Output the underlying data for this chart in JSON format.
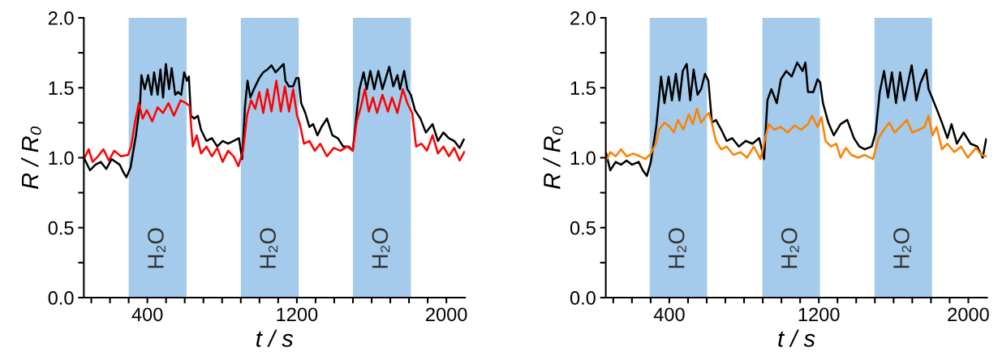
{
  "chart_data": [
    {
      "type": "line",
      "xlabel": "t / s",
      "ylabel": "R / R₀",
      "xlim": [
        60,
        2100
      ],
      "ylim": [
        0,
        2.0
      ],
      "xticks": [
        {
          "value": 100,
          "label": null
        },
        {
          "value": 200,
          "label": null
        },
        {
          "value": 300,
          "label": null
        },
        400,
        {
          "value": 500,
          "label": null
        },
        {
          "value": 600,
          "label": null
        },
        {
          "value": 700,
          "label": null
        },
        {
          "value": 800,
          "label": null
        },
        {
          "value": 900,
          "label": null
        },
        {
          "value": 1000,
          "label": null
        },
        {
          "value": 1100,
          "label": null
        },
        1200,
        {
          "value": 1300,
          "label": null
        },
        {
          "value": 1400,
          "label": null
        },
        {
          "value": 1500,
          "label": null
        },
        {
          "value": 1600,
          "label": null
        },
        {
          "value": 1700,
          "label": null
        },
        {
          "value": 1800,
          "label": null
        },
        {
          "value": 1900,
          "label": null
        },
        2000
      ],
      "yticks": [
        {
          "value": 0,
          "label": "0.0"
        },
        {
          "value": 0.25,
          "label": null
        },
        {
          "value": 0.5,
          "label": "0.5"
        },
        {
          "value": 0.75,
          "label": null
        },
        {
          "value": 1,
          "label": "1.0"
        },
        {
          "value": 1.25,
          "label": null
        },
        {
          "value": 1.5,
          "label": "1.5"
        },
        {
          "value": 1.75,
          "label": null
        },
        {
          "value": 2,
          "label": "2.0"
        }
      ],
      "grid": false,
      "legend": false,
      "bands": [
        {
          "axis": "x",
          "from": 300,
          "to": 610,
          "label": "H₂O",
          "color": "#a4cbeb"
        },
        {
          "axis": "x",
          "from": 900,
          "to": 1210,
          "label": "H₂O",
          "color": "#a4cbeb"
        },
        {
          "axis": "x",
          "from": 1500,
          "to": 1810,
          "label": "H₂O",
          "color": "#a4cbeb"
        }
      ],
      "series": [
        {
          "color": "#000000",
          "x": [
            64,
            93,
            122,
            151,
            180,
            209,
            252,
            274,
            288,
            310,
            339,
            361,
            368,
            386,
            404,
            422,
            436,
            455,
            470,
            484,
            499,
            516,
            530,
            549,
            564,
            581,
            597,
            612,
            622,
            633,
            651,
            670,
            687,
            716,
            745,
            774,
            803,
            832,
            861,
            890,
            907,
            922,
            936,
            951,
            970,
            999,
            1020,
            1042,
            1064,
            1086,
            1107,
            1129,
            1139,
            1158,
            1180,
            1197,
            1209,
            1223,
            1245,
            1267,
            1287,
            1310,
            1332,
            1361,
            1390,
            1419,
            1448,
            1477,
            1499,
            1520,
            1535,
            1557,
            1574,
            1593,
            1614,
            1636,
            1658,
            1694,
            1716,
            1738,
            1752,
            1774,
            1791,
            1810,
            1832,
            1861,
            1890,
            1926,
            1955,
            1984,
            2013,
            2042,
            2071,
            2093
          ],
          "values": [
            0.99,
            0.91,
            0.95,
            0.97,
            0.92,
            0.99,
            0.95,
            0.89,
            0.86,
            0.93,
            1.16,
            1.39,
            1.59,
            1.49,
            1.59,
            1.45,
            1.61,
            1.45,
            1.63,
            1.43,
            1.67,
            1.49,
            1.64,
            1.45,
            1.47,
            1.45,
            1.61,
            1.55,
            1.58,
            1.3,
            1.28,
            1.3,
            1.2,
            1.12,
            1.14,
            1.08,
            1.12,
            1.1,
            1.12,
            1.14,
            0.99,
            1.36,
            1.55,
            1.43,
            1.49,
            1.57,
            1.61,
            1.63,
            1.66,
            1.61,
            1.64,
            1.67,
            1.55,
            1.51,
            1.51,
            1.57,
            1.57,
            1.39,
            1.32,
            1.22,
            1.24,
            1.16,
            1.22,
            1.28,
            1.16,
            1.14,
            1.08,
            1.08,
            1.05,
            1.32,
            1.49,
            1.61,
            1.49,
            1.62,
            1.49,
            1.62,
            1.49,
            1.65,
            1.51,
            1.59,
            1.49,
            1.62,
            1.49,
            1.45,
            1.34,
            1.28,
            1.18,
            1.24,
            1.12,
            1.18,
            1.14,
            1.12,
            1.07,
            1.13
          ]
        },
        {
          "color": "#ff0000",
          "x": [
            64,
            86,
            107,
            136,
            165,
            194,
            223,
            259,
            296,
            313,
            332,
            354,
            375,
            397,
            426,
            455,
            484,
            513,
            542,
            578,
            607,
            626,
            643,
            664,
            687,
            716,
            745,
            774,
            803,
            832,
            861,
            887,
            912,
            933,
            955,
            977,
            999,
            1020,
            1042,
            1064,
            1090,
            1114,
            1136,
            1158,
            1180,
            1201,
            1216,
            1238,
            1267,
            1296,
            1325,
            1361,
            1397,
            1433,
            1470,
            1499,
            1520,
            1542,
            1564,
            1585,
            1607,
            1629,
            1658,
            1687,
            1709,
            1738,
            1767,
            1791,
            1817,
            1838,
            1867,
            1896,
            1926,
            1955,
            1984,
            2013,
            2042,
            2071,
            2095
          ],
          "values": [
            1.0,
            1.06,
            0.97,
            1.01,
            1.06,
            0.98,
            1.05,
            1.01,
            1.02,
            1.08,
            1.24,
            1.39,
            1.28,
            1.34,
            1.26,
            1.36,
            1.32,
            1.39,
            1.3,
            1.41,
            1.39,
            1.37,
            1.08,
            1.16,
            1.03,
            1.08,
            1.01,
            1.07,
            0.97,
            1.05,
            1.01,
            0.94,
            1.05,
            1.3,
            1.41,
            1.35,
            1.47,
            1.32,
            1.49,
            1.33,
            1.55,
            1.33,
            1.51,
            1.33,
            1.49,
            1.3,
            1.24,
            1.1,
            1.12,
            1.05,
            1.1,
            1.01,
            1.07,
            1.05,
            1.08,
            1.05,
            1.26,
            1.36,
            1.49,
            1.33,
            1.43,
            1.32,
            1.45,
            1.33,
            1.43,
            1.32,
            1.49,
            1.39,
            1.32,
            1.08,
            1.1,
            1.05,
            1.16,
            1.03,
            1.08,
            1.01,
            1.07,
            0.98,
            1.04
          ]
        }
      ]
    },
    {
      "type": "line",
      "xlabel": "t / s",
      "ylabel": "R / R₀",
      "xlim": [
        60,
        2100
      ],
      "ylim": [
        0,
        2.0
      ],
      "xticks": [
        {
          "value": 100,
          "label": null
        },
        {
          "value": 200,
          "label": null
        },
        {
          "value": 300,
          "label": null
        },
        400,
        {
          "value": 500,
          "label": null
        },
        {
          "value": 600,
          "label": null
        },
        {
          "value": 700,
          "label": null
        },
        {
          "value": 800,
          "label": null
        },
        {
          "value": 900,
          "label": null
        },
        {
          "value": 1000,
          "label": null
        },
        {
          "value": 1100,
          "label": null
        },
        1200,
        {
          "value": 1300,
          "label": null
        },
        {
          "value": 1400,
          "label": null
        },
        {
          "value": 1500,
          "label": null
        },
        {
          "value": 1600,
          "label": null
        },
        {
          "value": 1700,
          "label": null
        },
        {
          "value": 1800,
          "label": null
        },
        {
          "value": 1900,
          "label": null
        },
        2000
      ],
      "yticks": [
        {
          "value": 0,
          "label": "0.0"
        },
        {
          "value": 0.25,
          "label": null
        },
        {
          "value": 0.5,
          "label": "0.5"
        },
        {
          "value": 0.75,
          "label": null
        },
        {
          "value": 1,
          "label": "1.0"
        },
        {
          "value": 1.25,
          "label": null
        },
        {
          "value": 1.5,
          "label": "1.5"
        },
        {
          "value": 1.75,
          "label": null
        },
        {
          "value": 2,
          "label": "2.0"
        }
      ],
      "grid": false,
      "legend": false,
      "bands": [
        {
          "axis": "x",
          "from": 295,
          "to": 602,
          "label": "H₂O",
          "color": "#a4cbeb"
        },
        {
          "axis": "x",
          "from": 898,
          "to": 1206,
          "label": "H₂O",
          "color": "#a4cbeb"
        },
        {
          "axis": "x",
          "from": 1498,
          "to": 1806,
          "label": "H₂O",
          "color": "#a4cbeb"
        }
      ],
      "series": [
        {
          "color": "#000000",
          "x": [
            62,
            84,
            113,
            142,
            171,
            200,
            236,
            258,
            280,
            301,
            330,
            356,
            374,
            396,
            414,
            435,
            454,
            472,
            493,
            512,
            530,
            551,
            570,
            591,
            609,
            628,
            649,
            678,
            707,
            736,
            772,
            809,
            845,
            881,
            907,
            925,
            946,
            975,
            997,
            1026,
            1055,
            1084,
            1113,
            1128,
            1142,
            1171,
            1193,
            1207,
            1222,
            1251,
            1280,
            1316,
            1352,
            1388,
            1417,
            1446,
            1483,
            1504,
            1526,
            1549,
            1570,
            1591,
            1613,
            1635,
            1657,
            1697,
            1722,
            1743,
            1775,
            1787,
            1806,
            1830,
            1859,
            1888,
            1910,
            1939,
            1975,
            2012,
            2048,
            2077,
            2095
          ],
          "values": [
            1.03,
            0.91,
            0.97,
            0.95,
            0.98,
            0.95,
            0.97,
            0.91,
            0.87,
            0.97,
            1.22,
            1.58,
            1.39,
            1.58,
            1.41,
            1.6,
            1.41,
            1.62,
            1.67,
            1.41,
            1.63,
            1.45,
            1.49,
            1.6,
            1.55,
            1.25,
            1.27,
            1.2,
            1.12,
            1.14,
            1.08,
            1.12,
            1.1,
            1.14,
            0.99,
            1.41,
            1.49,
            1.39,
            1.56,
            1.62,
            1.58,
            1.68,
            1.62,
            1.68,
            1.47,
            1.47,
            1.56,
            1.54,
            1.39,
            1.25,
            1.16,
            1.24,
            1.27,
            1.14,
            1.08,
            1.06,
            1.08,
            1.18,
            1.47,
            1.62,
            1.43,
            1.61,
            1.39,
            1.61,
            1.41,
            1.66,
            1.41,
            1.53,
            1.63,
            1.49,
            1.43,
            1.35,
            1.25,
            1.14,
            1.24,
            1.1,
            1.18,
            1.1,
            1.08,
            1.0,
            1.13
          ]
        },
        {
          "color": "#ff8000",
          "x": [
            62,
            84,
            113,
            142,
            171,
            207,
            243,
            272,
            301,
            328,
            345,
            374,
            403,
            425,
            446,
            475,
            504,
            526,
            548,
            570,
            591,
            612,
            627,
            649,
            678,
            707,
            743,
            780,
            816,
            852,
            888,
            910,
            932,
            961,
            997,
            1033,
            1070,
            1106,
            1142,
            1164,
            1193,
            1214,
            1236,
            1265,
            1294,
            1316,
            1345,
            1374,
            1410,
            1446,
            1490,
            1519,
            1548,
            1577,
            1606,
            1635,
            1671,
            1700,
            1736,
            1765,
            1787,
            1809,
            1830,
            1859,
            1888,
            1925,
            1961,
            1997,
            2041,
            2070,
            2095
          ],
          "values": [
            0.98,
            1.04,
            1.01,
            1.06,
            1.01,
            1.03,
            1.01,
            0.99,
            1.03,
            1.1,
            1.2,
            1.25,
            1.22,
            1.18,
            1.27,
            1.2,
            1.31,
            1.24,
            1.35,
            1.25,
            1.29,
            1.32,
            1.25,
            1.12,
            1.06,
            1.08,
            1.02,
            1.04,
            1.0,
            1.08,
            0.99,
            1.12,
            1.24,
            1.2,
            1.22,
            1.18,
            1.23,
            1.2,
            1.24,
            1.3,
            1.22,
            1.29,
            1.12,
            1.08,
            1.1,
            1.0,
            1.07,
            1.02,
            1.0,
            1.02,
            0.99,
            1.14,
            1.2,
            1.25,
            1.18,
            1.22,
            1.27,
            1.18,
            1.2,
            1.22,
            1.3,
            1.16,
            1.22,
            1.06,
            1.1,
            1.04,
            1.08,
            1.0,
            1.07,
            1.02,
            1.01
          ]
        }
      ]
    }
  ]
}
